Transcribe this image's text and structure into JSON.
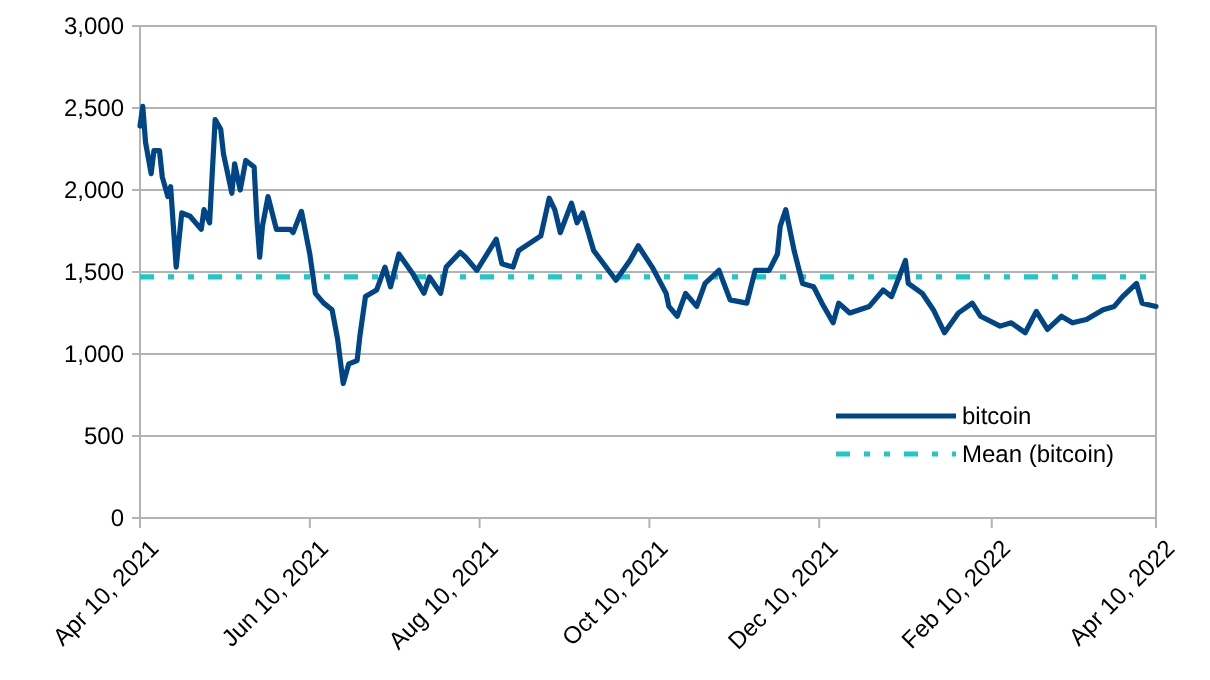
{
  "chart_data": {
    "type": "line",
    "x": [
      "2021-04-10",
      "2021-04-11",
      "2021-04-12",
      "2021-04-14",
      "2021-04-15",
      "2021-04-17",
      "2021-04-18",
      "2021-04-20",
      "2021-04-21",
      "2021-04-23",
      "2021-04-25",
      "2021-04-28",
      "2021-05-02",
      "2021-05-03",
      "2021-05-05",
      "2021-05-07",
      "2021-05-09",
      "2021-05-10",
      "2021-05-13",
      "2021-05-14",
      "2021-05-16",
      "2021-05-18",
      "2021-05-21",
      "2021-05-22",
      "2021-05-23",
      "2021-05-24",
      "2021-05-26",
      "2021-05-29",
      "2021-06-03",
      "2021-06-04",
      "2021-06-07",
      "2021-06-10",
      "2021-06-12",
      "2021-06-15",
      "2021-06-18",
      "2021-06-20",
      "2021-06-22",
      "2021-06-24",
      "2021-06-27",
      "2021-06-28",
      "2021-06-30",
      "2021-07-04",
      "2021-07-07",
      "2021-07-09",
      "2021-07-12",
      "2021-07-17",
      "2021-07-21",
      "2021-07-23",
      "2021-07-27",
      "2021-07-29",
      "2021-08-03",
      "2021-08-05",
      "2021-08-09",
      "2021-08-16",
      "2021-08-18",
      "2021-08-22",
      "2021-08-24",
      "2021-09-01",
      "2021-09-04",
      "2021-09-06",
      "2021-09-08",
      "2021-09-12",
      "2021-09-14",
      "2021-09-16",
      "2021-09-20",
      "2021-09-28",
      "2021-10-03",
      "2021-10-06",
      "2021-10-11",
      "2021-10-16",
      "2021-10-17",
      "2021-10-20",
      "2021-10-23",
      "2021-10-27",
      "2021-10-30",
      "2021-11-04",
      "2021-11-08",
      "2021-11-14",
      "2021-11-17",
      "2021-11-22",
      "2021-11-25",
      "2021-11-26",
      "2021-11-28",
      "2021-12-01",
      "2021-12-04",
      "2021-12-08",
      "2021-12-11",
      "2021-12-15",
      "2021-12-17",
      "2021-12-21",
      "2021-12-28",
      "2022-01-02",
      "2022-01-05",
      "2022-01-10",
      "2022-01-11",
      "2022-01-16",
      "2022-01-20",
      "2022-01-24",
      "2022-01-29",
      "2022-02-03",
      "2022-02-06",
      "2022-02-13",
      "2022-02-17",
      "2022-02-22",
      "2022-02-26",
      "2022-03-02",
      "2022-03-07",
      "2022-03-11",
      "2022-03-16",
      "2022-03-22",
      "2022-03-26",
      "2022-03-29",
      "2022-04-03",
      "2022-04-05",
      "2022-04-10"
    ],
    "series": [
      {
        "name": "bitcoin",
        "color": "#004586",
        "values": [
          2390,
          2510,
          2290,
          2100,
          2240,
          2240,
          2080,
          1960,
          2020,
          1530,
          1860,
          1840,
          1760,
          1880,
          1800,
          2430,
          2370,
          2220,
          1980,
          2160,
          2000,
          2180,
          2140,
          1820,
          1590,
          1780,
          1960,
          1760,
          1760,
          1740,
          1870,
          1610,
          1370,
          1310,
          1270,
          1090,
          820,
          940,
          960,
          1110,
          1350,
          1390,
          1530,
          1410,
          1610,
          1490,
          1370,
          1470,
          1370,
          1530,
          1620,
          1590,
          1510,
          1700,
          1550,
          1530,
          1630,
          1720,
          1950,
          1880,
          1740,
          1920,
          1800,
          1860,
          1630,
          1450,
          1570,
          1660,
          1530,
          1370,
          1290,
          1230,
          1370,
          1290,
          1430,
          1510,
          1330,
          1310,
          1510,
          1510,
          1610,
          1780,
          1880,
          1630,
          1430,
          1410,
          1310,
          1190,
          1310,
          1250,
          1290,
          1390,
          1350,
          1570,
          1430,
          1370,
          1270,
          1130,
          1250,
          1310,
          1230,
          1170,
          1190,
          1130,
          1260,
          1150,
          1230,
          1190,
          1210,
          1270,
          1290,
          1350,
          1430,
          1310,
          1290
        ]
      }
    ],
    "ref_lines": [
      {
        "axis": "y",
        "value": 1470,
        "label": "Mean (bitcoin)",
        "color": "#1fc7c7",
        "line_style": "dashed"
      }
    ],
    "xlim": [
      "2021-04-10",
      "2022-04-10"
    ],
    "xticks": [
      {
        "value": "2021-04-10",
        "label": "Apr 10, 2021"
      },
      {
        "value": "2021-06-10",
        "label": "Jun 10, 2021"
      },
      {
        "value": "2021-08-10",
        "label": "Aug 10, 2021"
      },
      {
        "value": "2021-10-10",
        "label": "Oct 10, 2021"
      },
      {
        "value": "2021-12-10",
        "label": "Dec 10, 2021"
      },
      {
        "value": "2022-02-10",
        "label": "Feb 10, 2022"
      },
      {
        "value": "2022-04-10",
        "label": "Apr 10, 2022"
      }
    ],
    "ylim": [
      0,
      3000
    ],
    "yticks": [
      0,
      500,
      {
        "value": 1000,
        "label": "1,000"
      },
      {
        "value": 1500,
        "label": "1,500"
      },
      {
        "value": 2000,
        "label": "2,000"
      },
      {
        "value": 2500,
        "label": "2,500"
      },
      {
        "value": 3000,
        "label": "3,000"
      }
    ],
    "grid": "y",
    "legend": "bottom right",
    "marker": "none",
    "line_style": "solid"
  }
}
